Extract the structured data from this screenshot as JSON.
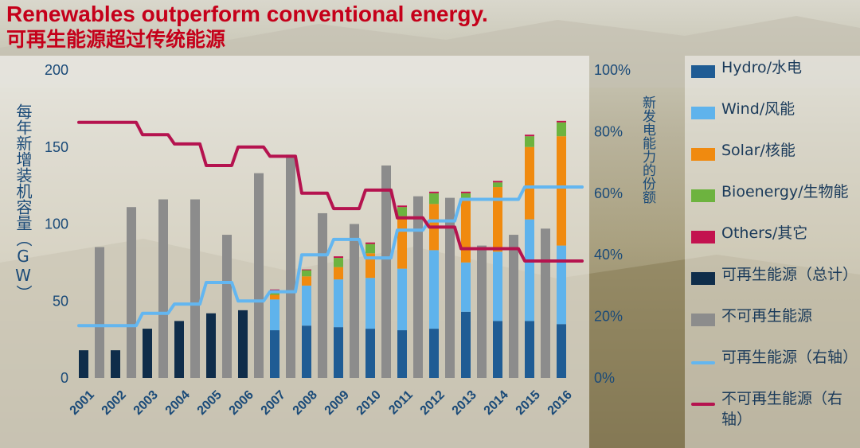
{
  "title": {
    "line1": "Renewables outperform conventional energy.",
    "line2": "可再生能源超过传统能源"
  },
  "colors": {
    "title": "#c5001a",
    "hydro": "#1f5c94",
    "wind": "#5fb3ec",
    "solar": "#f08a0f",
    "bioenergy": "#6db33f",
    "others": "#c3124f",
    "renewables_total": "#0f2d4a",
    "non_renewables": "#8c8c8c",
    "renew_share_line": "#63b6f0",
    "nonrenew_share_line": "#b5134f",
    "axis_text": "#1a4a78"
  },
  "legend": [
    {
      "label": "Hydro/水电",
      "key": "hydro",
      "kind": "bar"
    },
    {
      "label": "Wind/风能",
      "key": "wind",
      "kind": "bar"
    },
    {
      "label": "Solar/核能",
      "key": "solar",
      "kind": "bar"
    },
    {
      "label": "Bioenergy/生物能",
      "key": "bioenergy",
      "kind": "bar"
    },
    {
      "label": "Others/其它",
      "key": "others",
      "kind": "bar"
    },
    {
      "label": "可再生能源（总计）",
      "key": "renewables_total",
      "kind": "bar"
    },
    {
      "label": "不可再生能源",
      "key": "non_renewables",
      "kind": "bar"
    },
    {
      "label": "可再生能源（右轴）",
      "key": "renew_share_line",
      "kind": "line"
    },
    {
      "label": "不可再生能源（右轴）",
      "key": "nonrenew_share_line",
      "kind": "line"
    }
  ],
  "chart_data": {
    "type": "bar",
    "ylabel": "每年新增装机容量（GW）",
    "y2label": "新发电能力的份额",
    "ylim": [
      0,
      200
    ],
    "y_ticks": [
      "0",
      "50",
      "100",
      "150",
      "200"
    ],
    "y2lim": [
      0,
      100
    ],
    "y2_ticks": [
      "0%",
      "20%",
      "40%",
      "60%",
      "80%",
      "100%"
    ],
    "categories": [
      "2001",
      "2002",
      "2003",
      "2004",
      "2005",
      "2006",
      "2007",
      "2008",
      "2009",
      "2010",
      "2011",
      "2012",
      "2013",
      "2014",
      "2015",
      "2016"
    ],
    "renewables_total": [
      18,
      18,
      32,
      37,
      42,
      44,
      null,
      null,
      null,
      null,
      null,
      null,
      null,
      null,
      null,
      null
    ],
    "stacked_series": [
      {
        "name": "Hydro/水电",
        "key": "hydro",
        "values": [
          null,
          null,
          null,
          null,
          null,
          null,
          31,
          34,
          33,
          32,
          31,
          32,
          43,
          37,
          37,
          35
        ]
      },
      {
        "name": "Wind/风能",
        "key": "wind",
        "values": [
          null,
          null,
          null,
          null,
          null,
          null,
          20,
          26,
          31,
          33,
          40,
          51,
          32,
          45,
          66,
          51
        ]
      },
      {
        "name": "Solar/核能",
        "key": "solar",
        "values": [
          null,
          null,
          null,
          null,
          null,
          null,
          3,
          6,
          8,
          16,
          34,
          30,
          42,
          42,
          47,
          71
        ]
      },
      {
        "name": "Bioenergy/生物能",
        "key": "bioenergy",
        "values": [
          null,
          null,
          null,
          null,
          null,
          null,
          3,
          4,
          6,
          6,
          6,
          7,
          3,
          3,
          7,
          9
        ]
      },
      {
        "name": "Others/其它",
        "key": "others",
        "values": [
          null,
          null,
          null,
          null,
          null,
          null,
          0.5,
          0.5,
          1,
          1,
          1,
          1,
          1,
          1,
          1,
          1
        ]
      }
    ],
    "non_renewables": [
      85,
      111,
      116,
      116,
      93,
      133,
      145,
      107,
      100,
      138,
      118,
      117,
      86,
      93,
      97,
      null
    ],
    "share_lines": [
      {
        "name": "可再生能源（右轴）",
        "key": "renew_share_line",
        "values": [
          17,
          17,
          21,
          24,
          31,
          25,
          28,
          40,
          45,
          39,
          48,
          51,
          58,
          58,
          62,
          62
        ]
      },
      {
        "name": "不可再生能源（右轴）",
        "key": "nonrenew_share_line",
        "values": [
          83,
          83,
          79,
          76,
          69,
          75,
          72,
          60,
          55,
          61,
          52,
          49,
          42,
          42,
          38,
          38
        ]
      }
    ]
  }
}
